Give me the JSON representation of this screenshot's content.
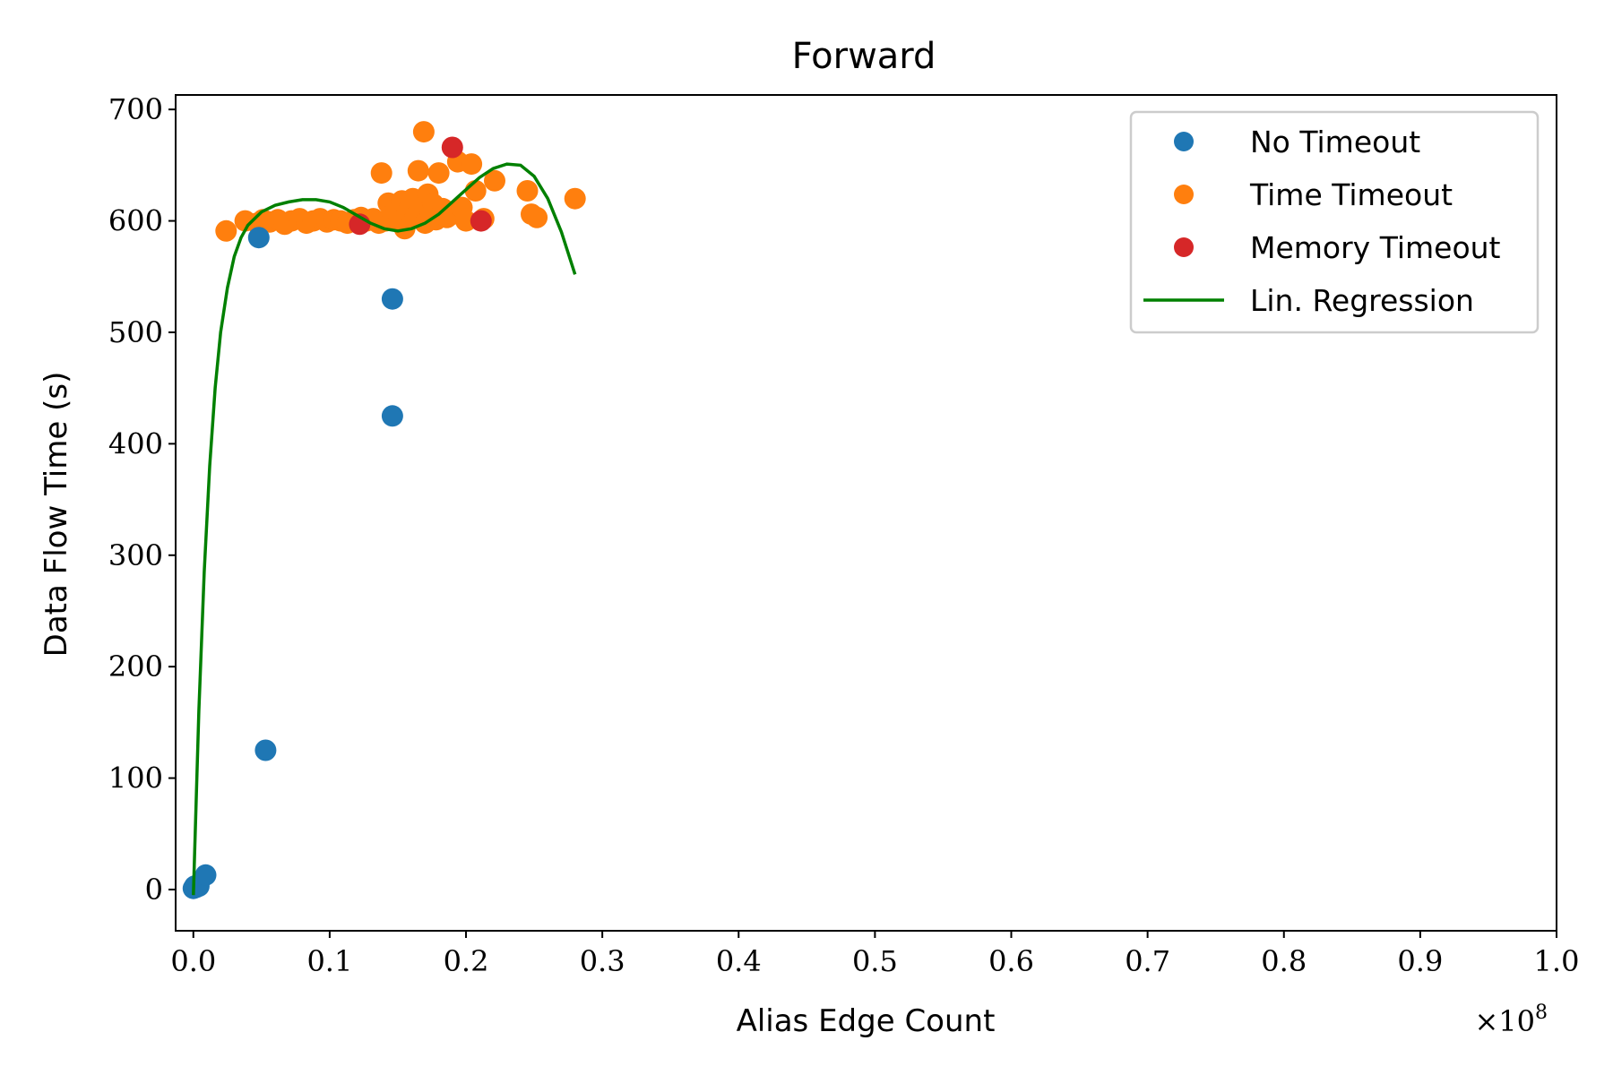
{
  "chart_data": {
    "type": "scatter",
    "title": "Forward",
    "xlabel": "Alias Edge Count",
    "ylabel": "Data Flow Time (s)",
    "x_multiplier": "×10",
    "x_multiplier_exp": "8",
    "xlim": [
      -0.013,
      1.0
    ],
    "ylim": [
      -37,
      713
    ],
    "xticks": [
      0.0,
      0.1,
      0.2,
      0.3,
      0.4,
      0.5,
      0.6,
      0.7,
      0.8,
      0.9,
      1.0
    ],
    "xtick_labels": [
      "0.0",
      "0.1",
      "0.2",
      "0.3",
      "0.4",
      "0.5",
      "0.6",
      "0.7",
      "0.8",
      "0.9",
      "1.0"
    ],
    "yticks": [
      0,
      100,
      200,
      300,
      400,
      500,
      600,
      700
    ],
    "ytick_labels": [
      "0",
      "100",
      "200",
      "300",
      "400",
      "500",
      "600",
      "700"
    ],
    "grid": false,
    "legend_position": "top-right",
    "series": [
      {
        "name": "Time Timeout",
        "kind": "scatter",
        "color": "#ff7f0e",
        "points": [
          [
            0.024,
            591
          ],
          [
            0.038,
            600
          ],
          [
            0.047,
            598
          ],
          [
            0.051,
            601
          ],
          [
            0.056,
            599
          ],
          [
            0.062,
            601
          ],
          [
            0.067,
            597
          ],
          [
            0.072,
            600
          ],
          [
            0.078,
            602
          ],
          [
            0.083,
            598
          ],
          [
            0.088,
            600
          ],
          [
            0.093,
            602
          ],
          [
            0.098,
            599
          ],
          [
            0.103,
            601
          ],
          [
            0.108,
            600
          ],
          [
            0.113,
            598
          ],
          [
            0.118,
            601
          ],
          [
            0.123,
            603
          ],
          [
            0.127,
            600
          ],
          [
            0.132,
            602
          ],
          [
            0.136,
            598
          ],
          [
            0.138,
            643
          ],
          [
            0.141,
            600
          ],
          [
            0.143,
            616
          ],
          [
            0.146,
            606
          ],
          [
            0.149,
            611
          ],
          [
            0.151,
            601
          ],
          [
            0.153,
            618
          ],
          [
            0.155,
            593
          ],
          [
            0.157,
            609
          ],
          [
            0.159,
            614
          ],
          [
            0.161,
            620
          ],
          [
            0.163,
            604
          ],
          [
            0.165,
            645
          ],
          [
            0.167,
            612
          ],
          [
            0.169,
            680
          ],
          [
            0.17,
            598
          ],
          [
            0.172,
            624
          ],
          [
            0.174,
            607
          ],
          [
            0.176,
            615
          ],
          [
            0.178,
            601
          ],
          [
            0.18,
            643
          ],
          [
            0.183,
            611
          ],
          [
            0.186,
            603
          ],
          [
            0.19,
            606
          ],
          [
            0.194,
            653
          ],
          [
            0.197,
            612
          ],
          [
            0.2,
            600
          ],
          [
            0.204,
            651
          ],
          [
            0.207,
            627
          ],
          [
            0.213,
            602
          ],
          [
            0.221,
            636
          ],
          [
            0.245,
            627
          ],
          [
            0.248,
            606
          ],
          [
            0.252,
            603
          ],
          [
            0.28,
            620
          ]
        ]
      },
      {
        "name": "No Timeout",
        "kind": "scatter",
        "color": "#1f77b4",
        "points": [
          [
            0.0,
            1
          ],
          [
            0.001,
            3
          ],
          [
            0.002,
            2
          ],
          [
            0.003,
            4
          ],
          [
            0.004,
            3
          ],
          [
            0.009,
            13
          ],
          [
            0.048,
            585
          ],
          [
            0.053,
            125
          ],
          [
            0.146,
            530
          ],
          [
            0.146,
            425
          ]
        ]
      },
      {
        "name": "Memory Timeout",
        "kind": "scatter",
        "color": "#d62728",
        "points": [
          [
            0.122,
            597
          ],
          [
            0.19,
            666
          ],
          [
            0.211,
            600
          ]
        ]
      },
      {
        "name": "Lin. Regression",
        "kind": "line",
        "color": "#008000",
        "points": [
          [
            0.0,
            -5
          ],
          [
            0.004,
            160
          ],
          [
            0.008,
            285
          ],
          [
            0.012,
            380
          ],
          [
            0.016,
            450
          ],
          [
            0.02,
            500
          ],
          [
            0.025,
            540
          ],
          [
            0.03,
            568
          ],
          [
            0.035,
            585
          ],
          [
            0.04,
            596
          ],
          [
            0.05,
            608
          ],
          [
            0.06,
            614
          ],
          [
            0.07,
            617
          ],
          [
            0.08,
            619
          ],
          [
            0.09,
            619
          ],
          [
            0.1,
            617
          ],
          [
            0.11,
            612
          ],
          [
            0.12,
            605
          ],
          [
            0.13,
            598
          ],
          [
            0.14,
            593
          ],
          [
            0.15,
            591
          ],
          [
            0.16,
            593
          ],
          [
            0.17,
            598
          ],
          [
            0.18,
            606
          ],
          [
            0.19,
            617
          ],
          [
            0.2,
            628
          ],
          [
            0.21,
            639
          ],
          [
            0.22,
            647
          ],
          [
            0.23,
            651
          ],
          [
            0.24,
            650
          ],
          [
            0.25,
            640
          ],
          [
            0.26,
            620
          ],
          [
            0.27,
            590
          ],
          [
            0.28,
            552
          ]
        ]
      }
    ],
    "legend_order": [
      "No Timeout",
      "Time Timeout",
      "Memory Timeout",
      "Lin. Regression"
    ]
  }
}
